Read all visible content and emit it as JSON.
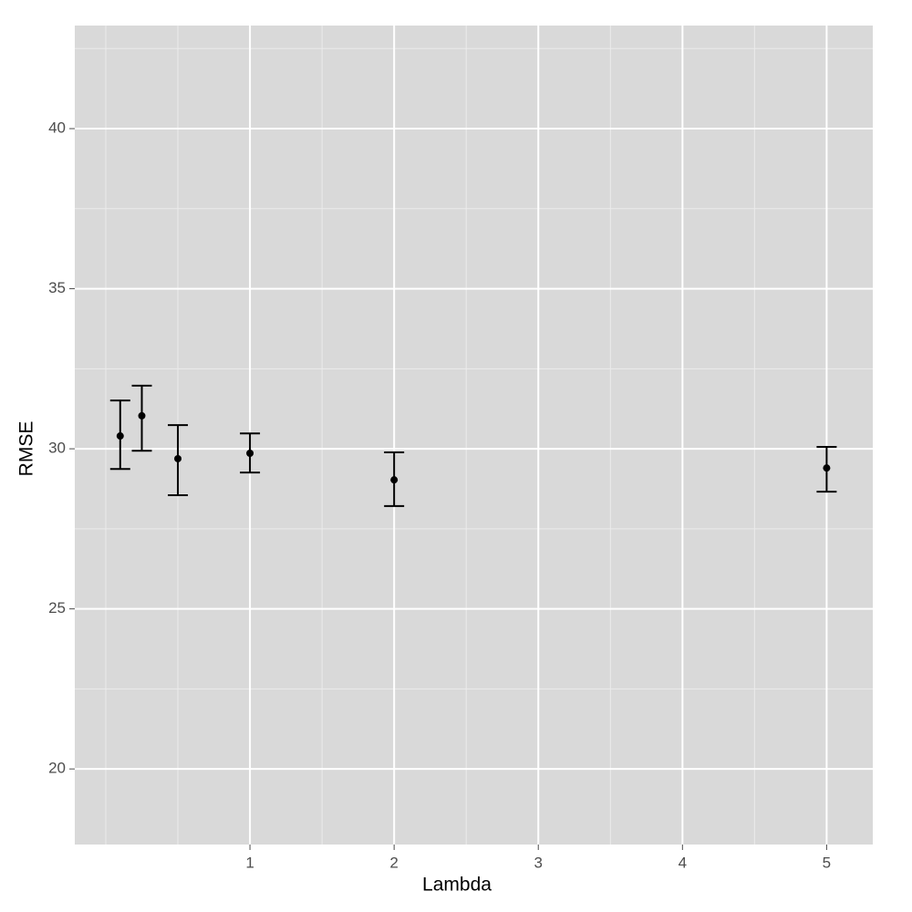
{
  "chart_data": {
    "type": "errorbar",
    "x_label": "Lambda",
    "y_label": "RMSE",
    "x": [
      0.1,
      0.25,
      0.5,
      1,
      2,
      5
    ],
    "values": [
      30.4,
      31.03,
      29.69,
      29.86,
      29.03,
      29.4
    ],
    "ymin": [
      29.37,
      29.94,
      28.55,
      29.26,
      28.21,
      28.66
    ],
    "ymax": [
      31.51,
      31.97,
      30.74,
      30.48,
      29.89,
      30.06
    ],
    "color": "#000000",
    "xlim": [
      -0.215,
      5.32
    ],
    "ylim": [
      17.64,
      43.22
    ],
    "xticks": [
      1,
      2,
      3,
      4,
      5
    ],
    "yticks": [
      20,
      25,
      30,
      35,
      40
    ],
    "xminor": [
      0,
      0.5,
      1.5,
      2.5,
      3.5,
      4.5
    ],
    "yminor": [
      22.5,
      27.5,
      32.5,
      37.5,
      42.5
    ],
    "grid": true
  }
}
